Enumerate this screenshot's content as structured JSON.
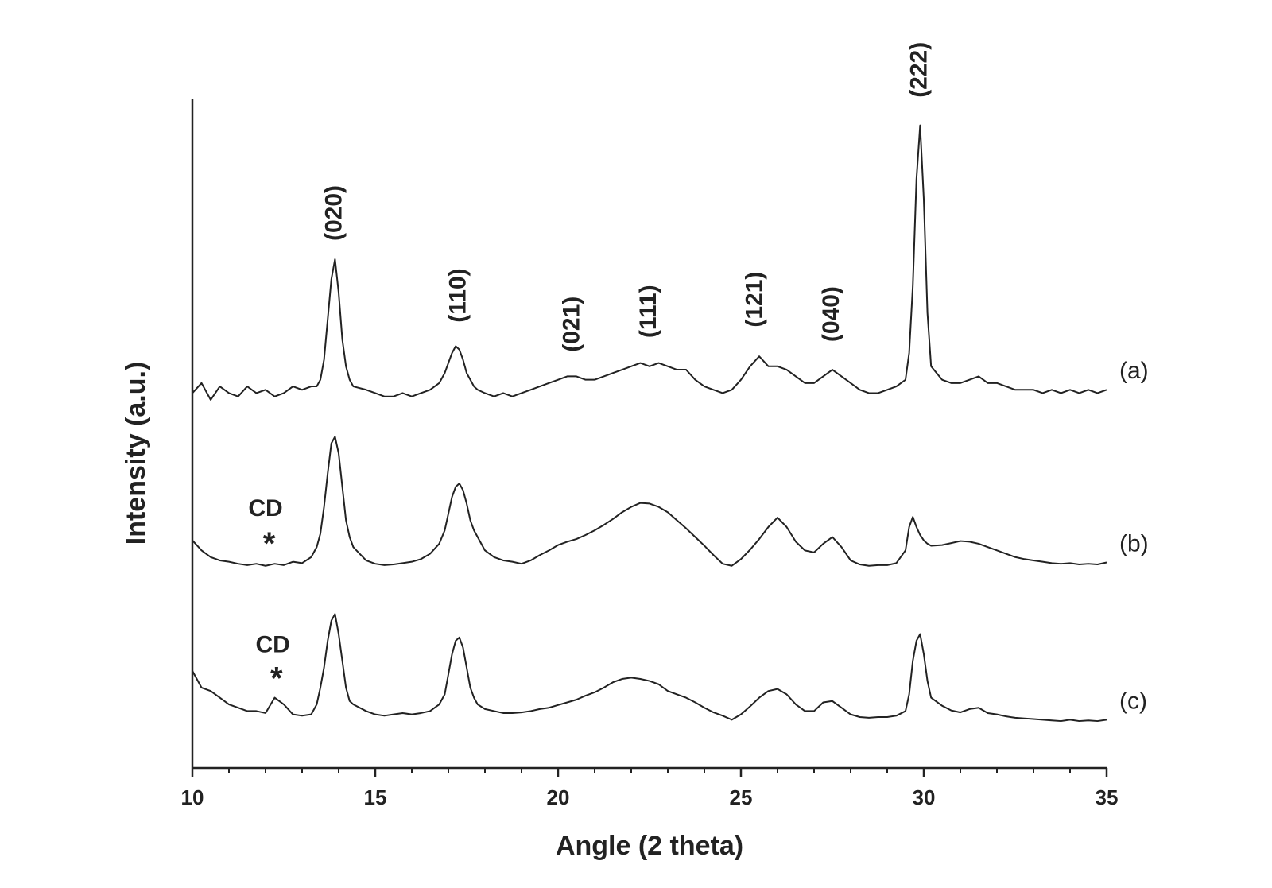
{
  "chart_data": {
    "type": "line",
    "xlabel": "Angle (2 theta)",
    "ylabel": "Intensity (a.u.)",
    "xlim": [
      10,
      35
    ],
    "ylim": [
      0,
      100
    ],
    "xticks": [
      10,
      15,
      20,
      25,
      30,
      35
    ],
    "xminorticks": [
      11,
      12,
      13,
      14,
      16,
      17,
      18,
      19,
      21,
      22,
      23,
      24,
      26,
      27,
      28,
      29,
      31,
      32,
      33,
      34
    ],
    "x": [
      10,
      10.25,
      10.5,
      10.75,
      11,
      11.25,
      11.5,
      11.75,
      12,
      12.25,
      12.5,
      12.75,
      13,
      13.25,
      13.4,
      13.5,
      13.6,
      13.7,
      13.8,
      13.9,
      14,
      14.1,
      14.2,
      14.3,
      14.4,
      14.75,
      15,
      15.25,
      15.5,
      15.75,
      16,
      16.25,
      16.5,
      16.75,
      16.9,
      17,
      17.1,
      17.2,
      17.3,
      17.4,
      17.5,
      17.6,
      17.7,
      17.8,
      18,
      18.25,
      18.5,
      18.75,
      19,
      19.25,
      19.5,
      19.75,
      20,
      20.25,
      20.5,
      20.75,
      21,
      21.25,
      21.5,
      21.75,
      22,
      22.25,
      22.5,
      22.75,
      23,
      23.25,
      23.5,
      23.75,
      24,
      24.25,
      24.5,
      24.75,
      25,
      25.25,
      25.5,
      25.75,
      26,
      26.25,
      26.5,
      26.75,
      27,
      27.25,
      27.5,
      27.75,
      28,
      28.25,
      28.5,
      28.75,
      29,
      29.25,
      29.5,
      29.6,
      29.7,
      29.8,
      29.9,
      30,
      30.1,
      30.2,
      30.5,
      30.75,
      31,
      31.25,
      31.5,
      31.75,
      32,
      32.25,
      32.5,
      32.75,
      33,
      33.25,
      33.5,
      33.75,
      34,
      34.25,
      34.5,
      34.75,
      35
    ],
    "series": [
      {
        "name": "(a)",
        "color": "#222222",
        "values": [
          56,
          57.5,
          55,
          57,
          56,
          55.5,
          57,
          56,
          56.5,
          55.5,
          56,
          57,
          56.5,
          57,
          57,
          58,
          61,
          67,
          73,
          76,
          71,
          64,
          60,
          58,
          57,
          56.5,
          56,
          55.5,
          55.5,
          56,
          55.5,
          56,
          56.5,
          57.5,
          59,
          60.5,
          62,
          63,
          62.5,
          61,
          59,
          58,
          57,
          56.5,
          56,
          55.5,
          56,
          55.5,
          56,
          56.5,
          57,
          57.5,
          58,
          58.5,
          58.5,
          58,
          58,
          58.5,
          59,
          59.5,
          60,
          60.5,
          60,
          60.5,
          60,
          59.5,
          59.5,
          58,
          57,
          56.5,
          56,
          56.5,
          58,
          60,
          61.5,
          60,
          60,
          59.5,
          58.5,
          57.5,
          57.5,
          58.5,
          59.5,
          58.5,
          57.5,
          56.5,
          56,
          56,
          56.5,
          57,
          58,
          62,
          72,
          88,
          96,
          85,
          68,
          60,
          58,
          57.5,
          57.5,
          58,
          58.5,
          57.5,
          57.5,
          57,
          56.5,
          56.5,
          56.5,
          56,
          56.5,
          56,
          56.5,
          56,
          56.5,
          56,
          56.5
        ]
      },
      {
        "name": "(b)",
        "color": "#222222",
        "values": [
          34,
          32.5,
          31.5,
          31,
          30.8,
          30.5,
          30.3,
          30.5,
          30.2,
          30.5,
          30.3,
          30.8,
          30.6,
          31.5,
          33,
          35,
          39,
          44,
          48.5,
          49.5,
          47,
          42,
          37,
          34.5,
          33,
          31,
          30.5,
          30.3,
          30.4,
          30.6,
          30.8,
          31.2,
          32,
          33.5,
          35.5,
          38,
          40.5,
          42,
          42.5,
          41.5,
          39.5,
          37,
          35.5,
          34.5,
          32.5,
          31.5,
          31,
          30.8,
          30.5,
          31,
          31.8,
          32.5,
          33.3,
          33.8,
          34.2,
          34.8,
          35.5,
          36.3,
          37.2,
          38.2,
          39,
          39.6,
          39.5,
          39,
          38.2,
          37,
          35.8,
          34.5,
          33.2,
          31.8,
          30.5,
          30.2,
          31.2,
          32.6,
          34.2,
          36,
          37.4,
          36,
          33.8,
          32.5,
          32.2,
          33.5,
          34.5,
          33,
          31,
          30.4,
          30.2,
          30.3,
          30.3,
          30.6,
          32.5,
          36,
          37.5,
          36,
          34.8,
          34,
          33.5,
          33.2,
          33.3,
          33.6,
          33.9,
          33.8,
          33.5,
          33,
          32.5,
          32,
          31.5,
          31.2,
          31,
          30.8,
          30.6,
          30.5,
          30.6,
          30.4,
          30.5,
          30.4,
          30.7
        ]
      },
      {
        "name": "(c)",
        "color": "#222222",
        "values": [
          14.5,
          12,
          11.5,
          10.5,
          9.5,
          9,
          8.5,
          8.5,
          8.2,
          10.5,
          9.5,
          8,
          7.8,
          8,
          9.5,
          12,
          15,
          19,
          22,
          23,
          20,
          16,
          12,
          10,
          9.5,
          8.5,
          8,
          7.8,
          8,
          8.2,
          8,
          8.2,
          8.5,
          9.5,
          11,
          14,
          17,
          19,
          19.5,
          18,
          15,
          12,
          10.5,
          9.5,
          8.8,
          8.5,
          8.2,
          8.2,
          8.3,
          8.5,
          8.8,
          9,
          9.4,
          9.8,
          10.2,
          10.8,
          11.3,
          12,
          12.8,
          13.3,
          13.5,
          13.3,
          13,
          12.5,
          11.5,
          11,
          10.5,
          9.8,
          9,
          8.3,
          7.8,
          7.2,
          8,
          9.2,
          10.5,
          11.5,
          11.8,
          11,
          9.5,
          8.5,
          8.5,
          9.8,
          10,
          9,
          8,
          7.6,
          7.5,
          7.6,
          7.6,
          7.8,
          8.5,
          11,
          16,
          19,
          20,
          17,
          13,
          10.5,
          9.3,
          8.6,
          8.3,
          8.8,
          9,
          8.2,
          8,
          7.7,
          7.5,
          7.4,
          7.3,
          7.2,
          7.1,
          7,
          7.2,
          7,
          7.1,
          7,
          7.2
        ]
      }
    ],
    "peak_labels": [
      {
        "text": "(020)",
        "x": 13.9,
        "y": 82.9
      },
      {
        "text": "(110)",
        "x": 17.3,
        "y": 70.6
      },
      {
        "text": "(021)",
        "x": 20.4,
        "y": 66.3
      },
      {
        "text": "(111)",
        "x": 22.5,
        "y": 68.2
      },
      {
        "text": "(121)",
        "x": 25.4,
        "y": 70
      },
      {
        "text": "(040)",
        "x": 27.5,
        "y": 67.8
      },
      {
        "text": "(222)",
        "x": 29.9,
        "y": 104.3
      }
    ],
    "notes": [
      {
        "text": "CD",
        "x": 12.0,
        "y": 38.6
      },
      {
        "text": "*",
        "x": 12.1,
        "y": 33.2
      },
      {
        "text": "CD",
        "x": 12.2,
        "y": 18.2
      },
      {
        "text": "*",
        "x": 12.3,
        "y": 13.1
      }
    ]
  }
}
